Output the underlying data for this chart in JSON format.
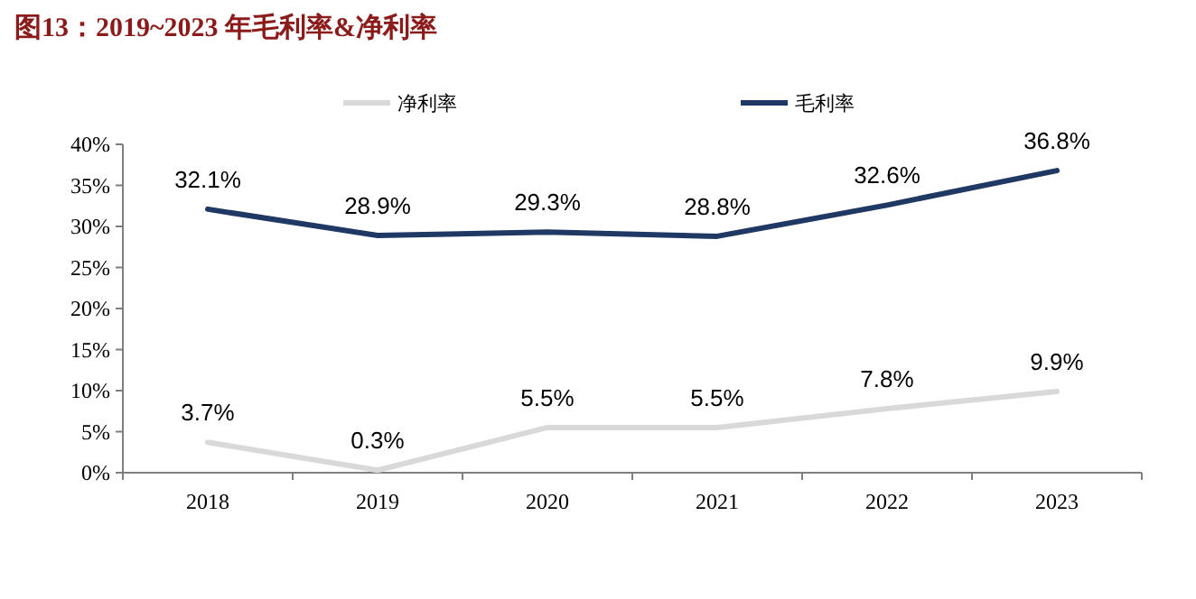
{
  "chart_data": {
    "type": "line",
    "title": "图13：2019~2023 年毛利率&净利率",
    "categories": [
      "2018",
      "2019",
      "2020",
      "2021",
      "2022",
      "2023"
    ],
    "series": [
      {
        "name": "净利率",
        "color": "#d9d9d9",
        "values": [
          3.7,
          0.3,
          5.5,
          5.5,
          7.8,
          9.9
        ],
        "value_labels": [
          "3.7%",
          "0.3%",
          "5.5%",
          "5.5%",
          "7.8%",
          "9.9%"
        ]
      },
      {
        "name": "毛利率",
        "color": "#1f3864",
        "values": [
          32.1,
          28.9,
          29.3,
          28.8,
          32.6,
          36.8
        ],
        "value_labels": [
          "32.1%",
          "28.9%",
          "29.3%",
          "28.8%",
          "32.6%",
          "36.8%"
        ]
      }
    ],
    "ylim": [
      0,
      40
    ],
    "yticks": [
      {
        "value": 0,
        "label": "0%"
      },
      {
        "value": 5,
        "label": "5%"
      },
      {
        "value": 10,
        "label": "10%"
      },
      {
        "value": 15,
        "label": "15%"
      },
      {
        "value": 20,
        "label": "20%"
      },
      {
        "value": 25,
        "label": "25%"
      },
      {
        "value": 30,
        "label": "30%"
      },
      {
        "value": 35,
        "label": "35%"
      },
      {
        "value": 40,
        "label": "40%"
      }
    ],
    "grid": false,
    "legend": "top",
    "marker": "none",
    "line_style": "solid"
  }
}
